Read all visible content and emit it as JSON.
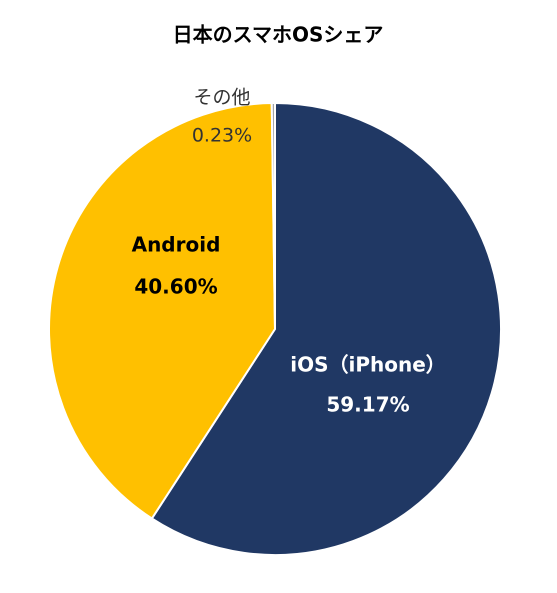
{
  "chart_data": {
    "type": "pie",
    "title": "日本のスマホOSシェア",
    "categories": [
      "iOS（iPhone）",
      "Android",
      "その他"
    ],
    "values": [
      59.17,
      40.6,
      0.23
    ],
    "value_labels": [
      "59.17%",
      "40.60%",
      "0.23%"
    ],
    "colors": [
      "#203864",
      "#ffc000",
      "#a5a5a5"
    ]
  }
}
